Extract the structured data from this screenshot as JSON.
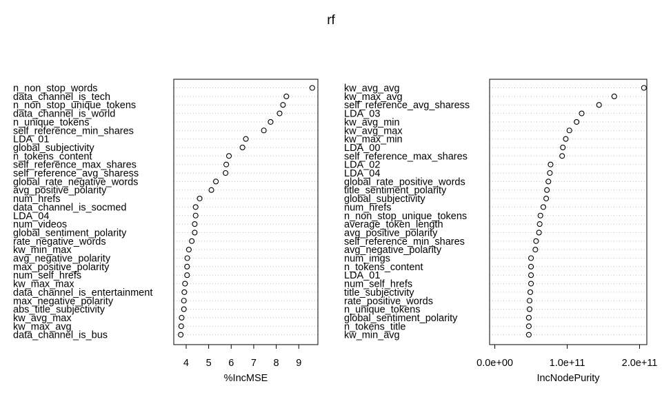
{
  "figure": {
    "title": "rf"
  },
  "chart_data": [
    {
      "type": "dotchart",
      "xlabel": "%IncMSE",
      "xlim": [
        3.45,
        9.85
      ],
      "xticks": [
        4,
        5,
        6,
        7,
        8,
        9
      ],
      "xtick_labels": [
        "4",
        "5",
        "6",
        "7",
        "8",
        "9"
      ],
      "grid": "dotted horizontal guide lines",
      "marker": "open circle",
      "labels": [
        "n_non_stop_words",
        "data_channel_is_tech",
        "n_non_stop_unique_tokens",
        "data_channel_is_world",
        "n_unique_tokens",
        "self_reference_min_shares",
        "LDA_01",
        "global_subjectivity",
        "n_tokens_content",
        "self_reference_max_shares",
        "self_reference_avg_sharess",
        "global_rate_negative_words",
        "avg_positive_polarity",
        "num_hrefs",
        "data_channel_is_socmed",
        "LDA_04",
        "num_videos",
        "global_sentiment_polarity",
        "rate_negative_words",
        "kw_min_max",
        "avg_negative_polarity",
        "max_positive_polarity",
        "num_self_hrefs",
        "kw_max_max",
        "data_channel_is_entertainment",
        "max_negative_polarity",
        "abs_title_subjectivity",
        "kw_avg_max",
        "kw_max_avg",
        "data_channel_is_bus"
      ],
      "values": [
        9.6,
        8.45,
        8.3,
        8.15,
        7.75,
        7.45,
        6.65,
        6.5,
        5.9,
        5.78,
        5.75,
        5.32,
        5.12,
        4.6,
        4.42,
        4.42,
        4.38,
        4.38,
        4.25,
        4.12,
        4.05,
        4.04,
        4.04,
        3.95,
        3.92,
        3.9,
        3.9,
        3.8,
        3.78,
        3.76
      ]
    },
    {
      "type": "dotchart",
      "xlabel": "IncNodePurity",
      "xlim": [
        -7200000000.0,
        210000000000.0
      ],
      "xticks": [
        0,
        100000000000.0,
        200000000000.0
      ],
      "xtick_labels": [
        "0.0e+00",
        "1.0e+11",
        "2.0e+11"
      ],
      "grid": "dotted horizontal guide lines",
      "marker": "open circle",
      "labels": [
        "kw_avg_avg",
        "kw_max_avg",
        "self_reference_avg_sharess",
        "LDA_03",
        "kw_avg_min",
        "kw_avg_max",
        "kw_max_min",
        "LDA_00",
        "self_reference_max_shares",
        "LDA_02",
        "LDA_04",
        "global_rate_positive_words",
        "title_sentiment_polarity",
        "global_subjectivity",
        "num_hrefs",
        "n_non_stop_unique_tokens",
        "average_token_length",
        "avg_positive_polarity",
        "self_reference_min_shares",
        "avg_negative_polarity",
        "num_imgs",
        "n_tokens_content",
        "LDA_01",
        "num_self_hrefs",
        "title_subjectivity",
        "rate_positive_words",
        "n_unique_tokens",
        "global_sentiment_polarity",
        "n_tokens_title",
        "kw_min_avg"
      ],
      "values": [
        206000000000.0,
        165000000000.0,
        144000000000.0,
        120000000000.0,
        113000000000.0,
        103000000000.0,
        98000000000.0,
        94000000000.0,
        93000000000.0,
        77000000000.0,
        76000000000.0,
        74000000000.0,
        72000000000.0,
        71000000000.0,
        67000000000.0,
        63000000000.0,
        62000000000.0,
        61000000000.0,
        57000000000.0,
        56000000000.0,
        50000000000.0,
        50000000000.0,
        50000000000.0,
        50000000000.0,
        49000000000.0,
        48000000000.0,
        48000000000.0,
        47000000000.0,
        47000000000.0,
        47000000000.0
      ]
    }
  ]
}
